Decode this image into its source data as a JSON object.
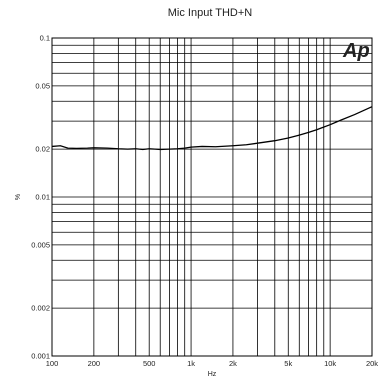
{
  "chart_data": {
    "type": "line",
    "title": "Mic Input THD+N",
    "xlabel": "Hz",
    "ylabel": "%",
    "x_scale": "log",
    "y_scale": "log",
    "xlim": [
      100,
      20000
    ],
    "ylim": [
      0.001,
      0.1
    ],
    "grid": true,
    "x_tick_labels": [
      "100",
      "200",
      "500",
      "1k",
      "2k",
      "5k",
      "10k",
      "20k"
    ],
    "y_tick_labels": [
      "0.1",
      "0.05",
      "0.02",
      "0.01",
      "0.005",
      "0.002",
      "0.001"
    ],
    "logo_text": "Ap",
    "line_color": "#000000",
    "series": [
      {
        "x": [
          100,
          115,
          130,
          150,
          180,
          200,
          250,
          300,
          350,
          400,
          450,
          500,
          550,
          600,
          700,
          800,
          900,
          1000,
          1200,
          1500,
          2000,
          2500,
          3000,
          4000,
          5000,
          6000,
          7000,
          8000,
          10000,
          12000,
          15000,
          20000
        ],
        "y": [
          0.0208,
          0.021,
          0.0203,
          0.0202,
          0.0203,
          0.0204,
          0.0203,
          0.0201,
          0.02,
          0.0201,
          0.0199,
          0.0201,
          0.02,
          0.0199,
          0.02,
          0.0201,
          0.0203,
          0.0206,
          0.0208,
          0.0207,
          0.021,
          0.0213,
          0.0218,
          0.0226,
          0.0235,
          0.0245,
          0.0255,
          0.0265,
          0.0285,
          0.0305,
          0.033,
          0.037
        ]
      }
    ]
  }
}
